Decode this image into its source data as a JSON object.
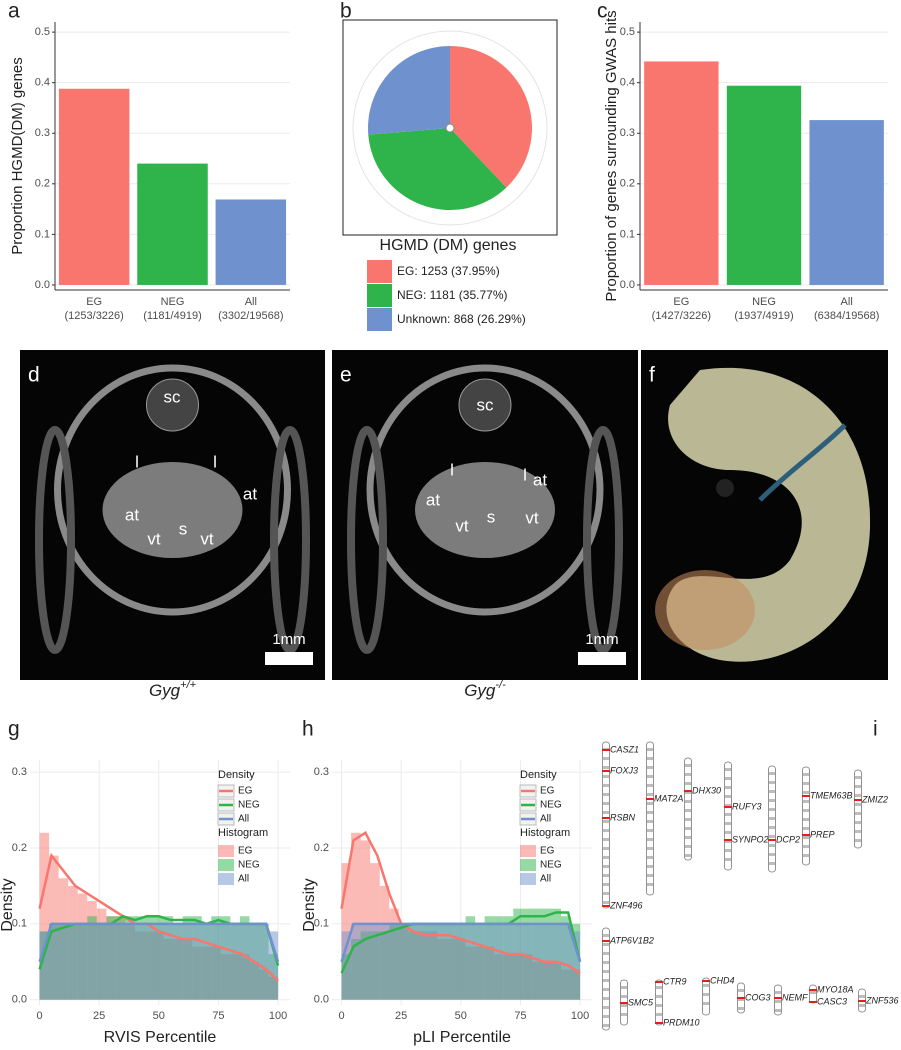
{
  "chart_data": [
    {
      "type": "bar",
      "panel_label": "a",
      "ylabel": "Proportion HGMD(DM) genes",
      "categories": [
        "EG",
        "NEG",
        "All"
      ],
      "category_counts": [
        "(1253/3226)",
        "(1181/4919)",
        "(3302/19568)"
      ],
      "values": [
        0.388,
        0.24,
        0.169
      ],
      "colors": [
        "#f8766d",
        "#2fb34b",
        "#6f91cd"
      ],
      "ylim": [
        -0.01,
        0.52
      ],
      "yticks": [
        {
          "value": 0,
          "label": "0.0"
        },
        {
          "value": 0.1,
          "label": "0.1"
        },
        {
          "value": 0.2,
          "label": "0.2"
        },
        {
          "value": 0.3,
          "label": "0.3"
        },
        {
          "value": 0.4,
          "label": "0.4"
        },
        {
          "value": 0.5,
          "label": "0.5"
        }
      ],
      "grid": true
    },
    {
      "type": "pie",
      "panel_label": "b",
      "title": "HGMD (DM) genes",
      "categories": [
        "EG: 1253 (37.95%)",
        "NEG: 1181 (35.77%)",
        "Unknown: 868 (26.29%)"
      ],
      "values": [
        1253,
        1181,
        868
      ],
      "colors": [
        "#f8766d",
        "#2fb34b",
        "#6f91cd"
      ]
    },
    {
      "type": "bar",
      "panel_label": "c",
      "ylabel": "Proportion of genes surrounding GWAS hits",
      "categories": [
        "EG",
        "NEG",
        "All"
      ],
      "category_counts": [
        "(1427/3226)",
        "(1937/4919)",
        "(6384/19568)"
      ],
      "values": [
        0.442,
        0.394,
        0.326
      ],
      "colors": [
        "#f8766d",
        "#2fb34b",
        "#6f91cd"
      ],
      "ylim": [
        -0.01,
        0.52
      ],
      "yticks": [
        {
          "value": 0,
          "label": "0.0"
        },
        {
          "value": 0.1,
          "label": "0.1"
        },
        {
          "value": 0.2,
          "label": "0.2"
        },
        {
          "value": 0.3,
          "label": "0.3"
        },
        {
          "value": 0.4,
          "label": "0.4"
        },
        {
          "value": 0.5,
          "label": "0.5"
        }
      ],
      "grid": true
    },
    {
      "type": "histogram",
      "panel_label": "g",
      "xlabel": "RVIS Percentile",
      "ylabel": "Density",
      "legend_titles": [
        "Density",
        "Histogram"
      ],
      "bins": [
        0,
        4,
        8,
        12,
        16,
        20,
        24,
        28,
        32,
        36,
        40,
        44,
        48,
        52,
        56,
        60,
        64,
        68,
        72,
        76,
        80,
        84,
        88,
        92,
        96,
        100
      ],
      "histogram_series": [
        {
          "name": "EG",
          "color": "#f8766d",
          "values": [
            0.22,
            0.19,
            0.16,
            0.15,
            0.14,
            0.13,
            0.12,
            0.11,
            0.11,
            0.1,
            0.09,
            0.09,
            0.09,
            0.08,
            0.08,
            0.08,
            0.07,
            0.07,
            0.07,
            0.06,
            0.06,
            0.06,
            0.05,
            0.04,
            0.03
          ]
        },
        {
          "name": "NEG",
          "color": "#2fb34b",
          "values": [
            0.09,
            0.1,
            0.1,
            0.1,
            0.1,
            0.11,
            0.1,
            0.11,
            0.11,
            0.11,
            0.11,
            0.11,
            0.11,
            0.11,
            0.1,
            0.11,
            0.11,
            0.1,
            0.11,
            0.11,
            0.1,
            0.11,
            0.1,
            0.1,
            0.06
          ]
        },
        {
          "name": "All",
          "color": "#6f91cd",
          "values": [
            0.09,
            0.1,
            0.1,
            0.1,
            0.1,
            0.1,
            0.1,
            0.1,
            0.1,
            0.1,
            0.1,
            0.1,
            0.1,
            0.1,
            0.1,
            0.1,
            0.1,
            0.1,
            0.1,
            0.1,
            0.1,
            0.1,
            0.1,
            0.1,
            0.09
          ]
        }
      ],
      "x": [
        0,
        5,
        10,
        15,
        20,
        25,
        30,
        35,
        40,
        45,
        50,
        55,
        60,
        65,
        70,
        75,
        80,
        85,
        90,
        95,
        100
      ],
      "density_series": [
        {
          "name": "EG",
          "color": "#f8766d",
          "values": [
            0.12,
            0.19,
            0.17,
            0.15,
            0.14,
            0.13,
            0.12,
            0.11,
            0.1,
            0.1,
            0.09,
            0.085,
            0.08,
            0.08,
            0.075,
            0.07,
            0.065,
            0.06,
            0.05,
            0.04,
            0.025
          ]
        },
        {
          "name": "NEG",
          "color": "#2fb34b",
          "values": [
            0.04,
            0.09,
            0.095,
            0.1,
            0.1,
            0.1,
            0.1,
            0.11,
            0.105,
            0.11,
            0.11,
            0.105,
            0.105,
            0.105,
            0.1,
            0.105,
            0.1,
            0.1,
            0.1,
            0.1,
            0.045
          ]
        },
        {
          "name": "All",
          "color": "#6f91cd",
          "values": [
            0.05,
            0.1,
            0.1,
            0.1,
            0.1,
            0.1,
            0.1,
            0.1,
            0.1,
            0.1,
            0.1,
            0.1,
            0.1,
            0.1,
            0.1,
            0.1,
            0.1,
            0.1,
            0.1,
            0.1,
            0.05
          ]
        }
      ],
      "xlim": [
        -4,
        105
      ],
      "ylim": [
        -0.007,
        0.316
      ],
      "xticks": [
        0,
        25,
        50,
        75,
        100
      ],
      "yticks": [
        {
          "value": 0,
          "label": "0.0"
        },
        {
          "value": 0.1,
          "label": "0.1"
        },
        {
          "value": 0.2,
          "label": "0.2"
        },
        {
          "value": 0.3,
          "label": "0.3"
        }
      ],
      "grid": true
    },
    {
      "type": "histogram",
      "panel_label": "h",
      "xlabel": "pLI Percentile",
      "ylabel": "Density",
      "legend_titles": [
        "Density",
        "Histogram"
      ],
      "bins": [
        0,
        4,
        8,
        12,
        16,
        20,
        24,
        28,
        32,
        36,
        40,
        44,
        48,
        52,
        56,
        60,
        64,
        68,
        72,
        76,
        80,
        84,
        88,
        92,
        96,
        100
      ],
      "histogram_series": [
        {
          "name": "EG",
          "color": "#f8766d",
          "values": [
            0.18,
            0.22,
            0.21,
            0.18,
            0.15,
            0.12,
            0.1,
            0.09,
            0.09,
            0.09,
            0.08,
            0.08,
            0.08,
            0.07,
            0.07,
            0.07,
            0.06,
            0.06,
            0.06,
            0.06,
            0.05,
            0.05,
            0.05,
            0.04,
            0.04
          ]
        },
        {
          "name": "NEG",
          "color": "#2fb34b",
          "values": [
            0.06,
            0.08,
            0.09,
            0.09,
            0.09,
            0.1,
            0.1,
            0.1,
            0.1,
            0.1,
            0.1,
            0.1,
            0.1,
            0.11,
            0.1,
            0.11,
            0.11,
            0.11,
            0.12,
            0.12,
            0.12,
            0.12,
            0.12,
            0.11,
            0.1
          ]
        },
        {
          "name": "All",
          "color": "#6f91cd",
          "values": [
            0.09,
            0.1,
            0.1,
            0.1,
            0.1,
            0.1,
            0.1,
            0.1,
            0.1,
            0.1,
            0.1,
            0.1,
            0.1,
            0.1,
            0.1,
            0.1,
            0.1,
            0.1,
            0.1,
            0.1,
            0.1,
            0.1,
            0.1,
            0.1,
            0.09
          ]
        }
      ],
      "x": [
        0,
        5,
        10,
        15,
        20,
        25,
        30,
        35,
        40,
        45,
        50,
        55,
        60,
        65,
        70,
        75,
        80,
        85,
        90,
        95,
        100
      ],
      "density_series": [
        {
          "name": "EG",
          "color": "#f8766d",
          "values": [
            0.12,
            0.21,
            0.22,
            0.19,
            0.14,
            0.1,
            0.09,
            0.085,
            0.085,
            0.085,
            0.08,
            0.075,
            0.07,
            0.065,
            0.06,
            0.06,
            0.055,
            0.05,
            0.05,
            0.045,
            0.035
          ]
        },
        {
          "name": "NEG",
          "color": "#2fb34b",
          "values": [
            0.035,
            0.07,
            0.08,
            0.085,
            0.09,
            0.095,
            0.1,
            0.1,
            0.1,
            0.1,
            0.1,
            0.1,
            0.1,
            0.1,
            0.1,
            0.11,
            0.11,
            0.11,
            0.115,
            0.115,
            0.05
          ]
        },
        {
          "name": "All",
          "color": "#6f91cd",
          "values": [
            0.05,
            0.1,
            0.1,
            0.1,
            0.1,
            0.1,
            0.1,
            0.1,
            0.1,
            0.1,
            0.1,
            0.1,
            0.1,
            0.1,
            0.1,
            0.1,
            0.1,
            0.1,
            0.1,
            0.1,
            0.05
          ]
        }
      ],
      "xlim": [
        -4,
        105
      ],
      "ylim": [
        -0.007,
        0.316
      ],
      "xticks": [
        0,
        25,
        50,
        75,
        100
      ],
      "yticks": [
        {
          "value": 0,
          "label": "0.0"
        },
        {
          "value": 0.1,
          "label": "0.1"
        },
        {
          "value": 0.2,
          "label": "0.2"
        },
        {
          "value": 0.3,
          "label": "0.3"
        }
      ],
      "grid": true
    }
  ],
  "images": [
    {
      "panel_label": "d",
      "labels": [
        "sc",
        "l",
        "l",
        "at",
        "at",
        "vt",
        "s",
        "vt"
      ],
      "scale": "1mm",
      "caption": {
        "gene": "Gyg",
        "genotype": "+/+"
      }
    },
    {
      "panel_label": "e",
      "labels": [
        "sc",
        "l",
        "l",
        "at",
        "at",
        "vt",
        "s",
        "vt"
      ],
      "scale": "1mm",
      "caption": {
        "gene": "Gyg",
        "genotype": "-/-"
      }
    },
    {
      "panel_label": "f"
    }
  ],
  "ideogram": {
    "panel_label": "i",
    "chromosomes": [
      [
        "CASZ1",
        "FOXJ3",
        "RSBN",
        "ZNF496"
      ],
      [
        "MAT2A"
      ],
      [
        "DHX30"
      ],
      [
        "RUFY3",
        "SYNPO2"
      ],
      [
        "DCP2"
      ],
      [
        "TMEM63B",
        "PREP"
      ],
      [
        "ZMIZ2"
      ],
      [
        "ATP6V1B2"
      ],
      [
        "SMC5"
      ],
      [
        "CTR9",
        "PRDM10"
      ],
      [
        "CHD4"
      ],
      [
        "COG3"
      ],
      [
        "NEMF"
      ],
      [
        "MYO18A",
        "CASC3"
      ],
      [
        "ZNF536"
      ]
    ]
  }
}
